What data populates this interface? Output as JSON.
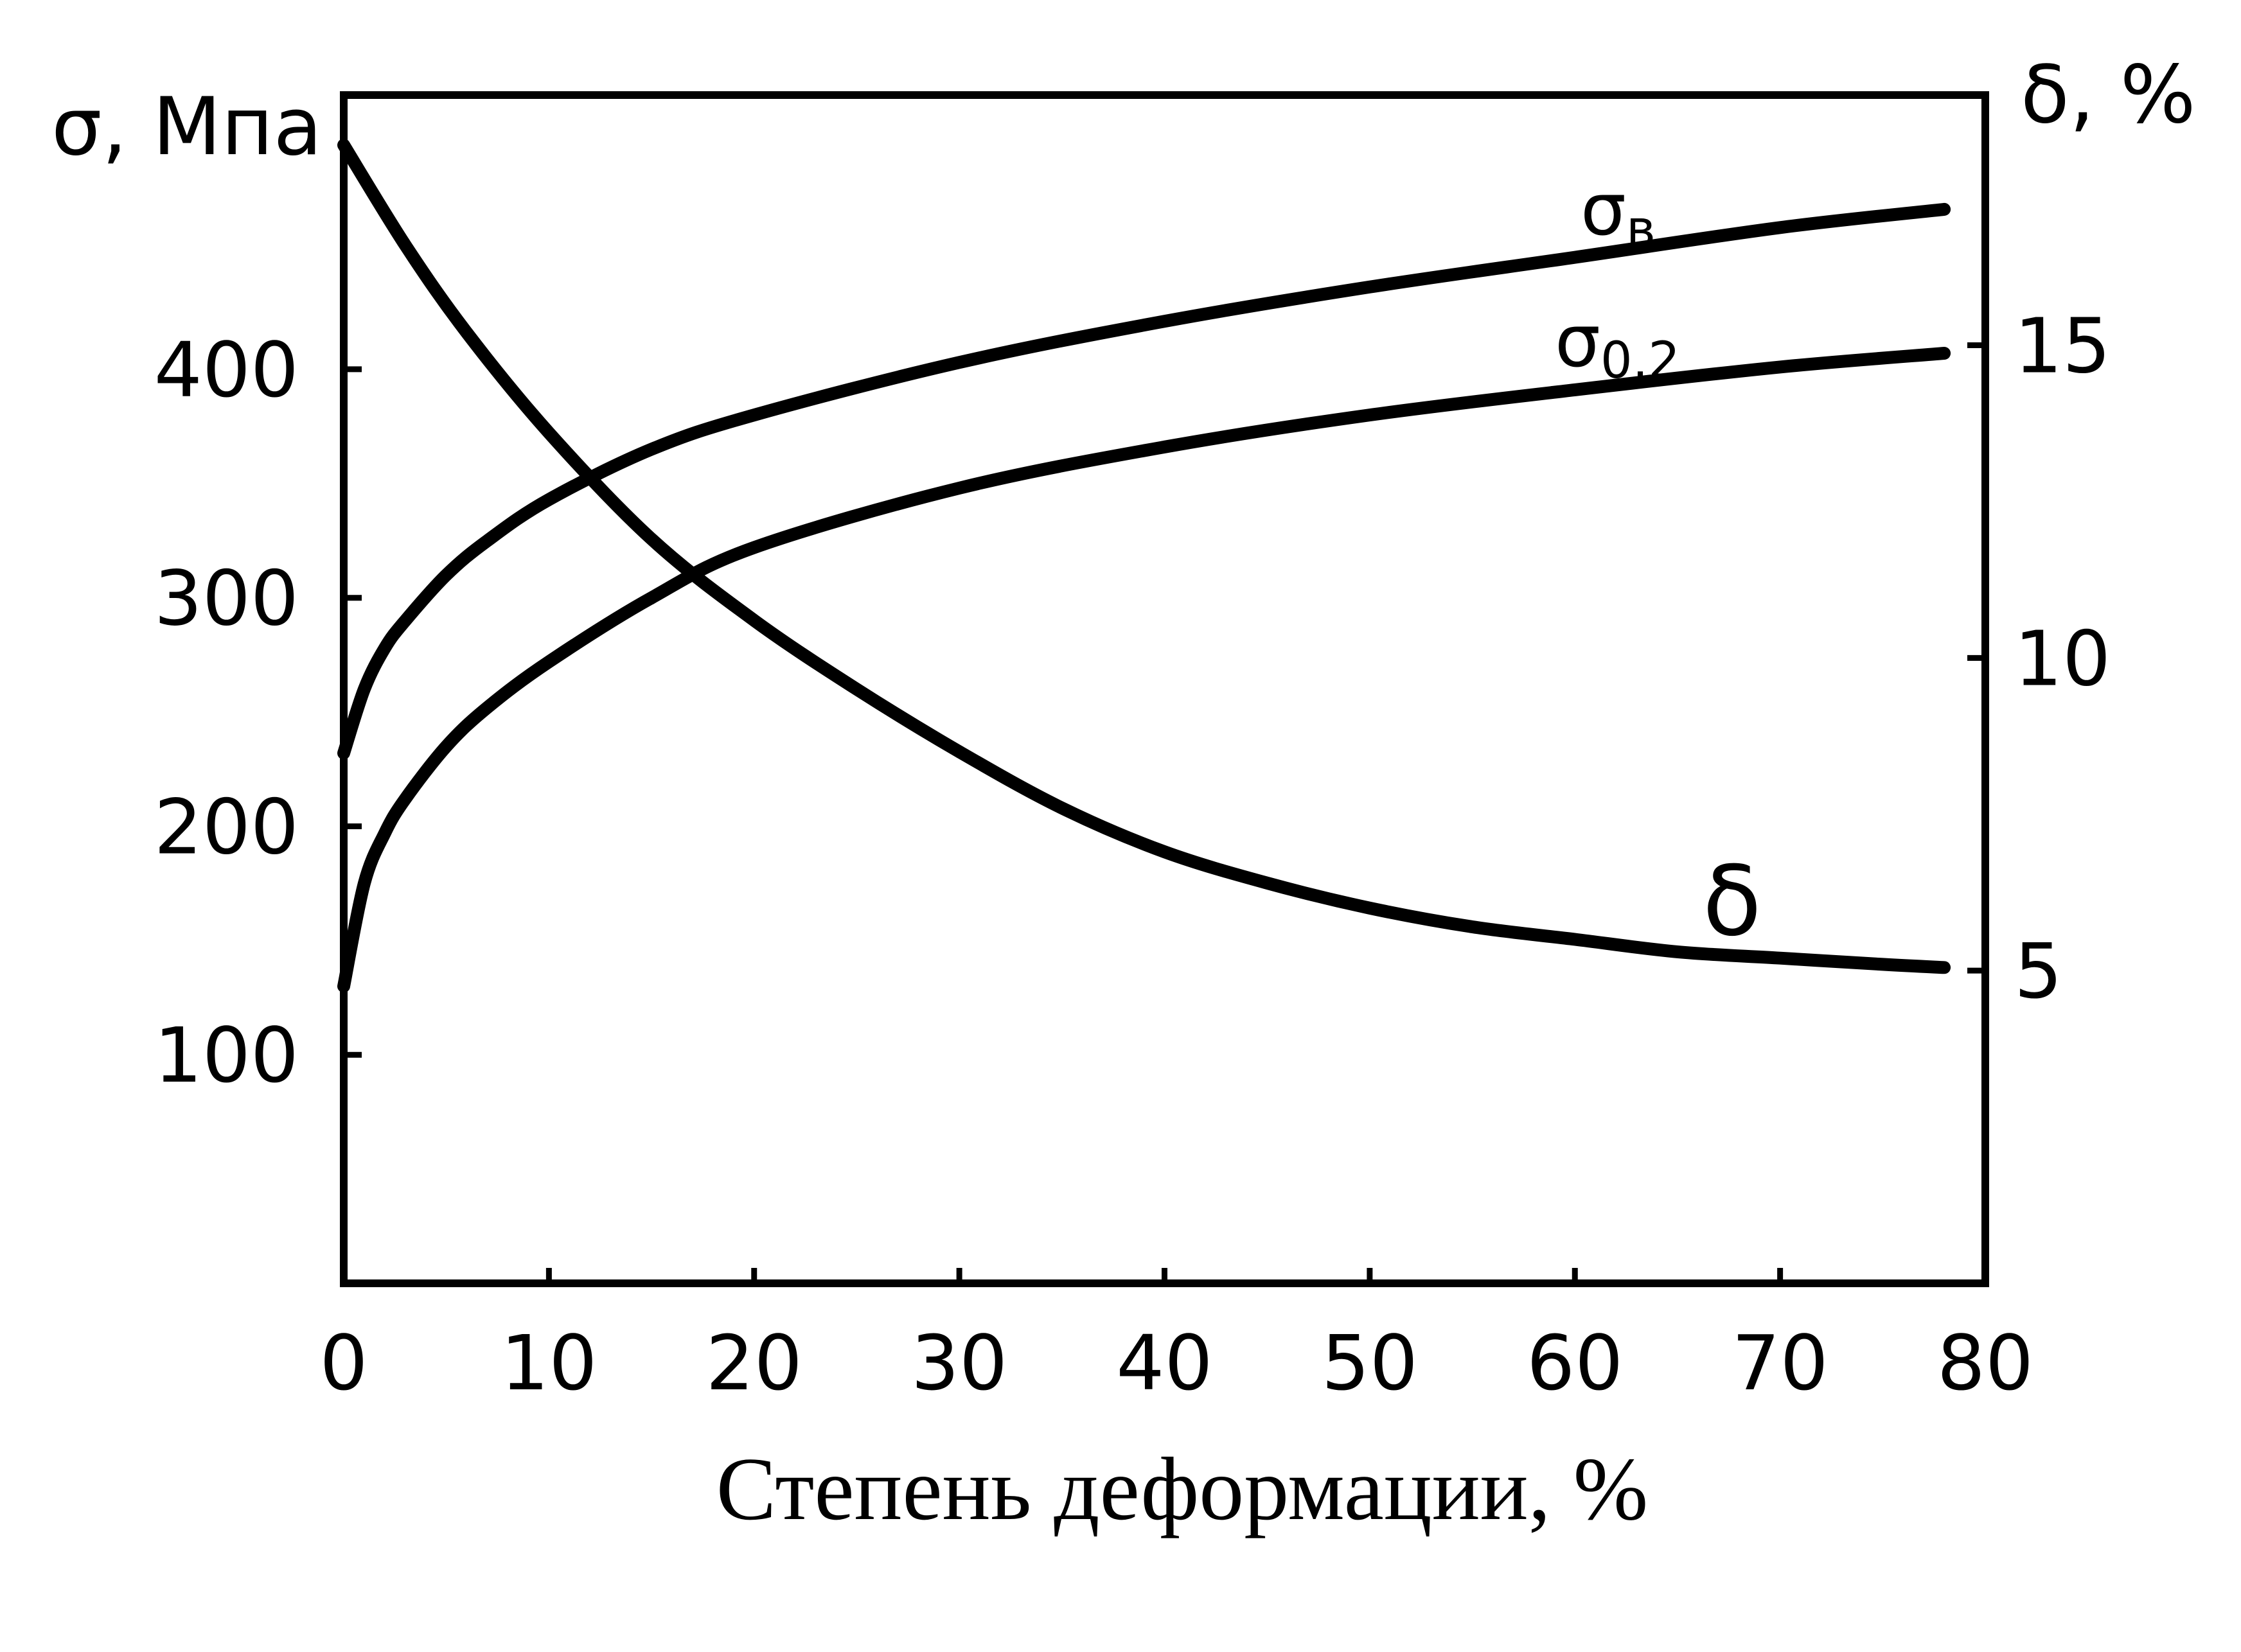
{
  "chart_data": {
    "type": "line",
    "xlabel": "Степень деформации, %",
    "ylabel_left": "σ, Мпа",
    "ylabel_right": "δ, %",
    "xlim": [
      0,
      80
    ],
    "ylim_left": [
      0,
      520
    ],
    "ylim_right": [
      0,
      19
    ],
    "x_ticks": [
      "0",
      "10",
      "20",
      "30",
      "40",
      "50",
      "60",
      "70",
      "80"
    ],
    "y_left_ticks": [
      "100",
      "200",
      "300",
      "400"
    ],
    "y_right_ticks": [
      "5",
      "10",
      "15"
    ],
    "grid": false,
    "series": [
      {
        "name": "σв",
        "label_main": "σ",
        "label_sub": "в",
        "axis": "left",
        "x": [
          0,
          1,
          2,
          3,
          5,
          7,
          10,
          15,
          20,
          30,
          40,
          50,
          60,
          70,
          78
        ],
        "y": [
          232,
          260,
          278,
          290,
          310,
          325,
          343,
          365,
          380,
          403,
          421,
          436,
          449,
          462,
          470
        ]
      },
      {
        "name": "σ0.2",
        "label_main": "σ",
        "label_sub": "0.2",
        "axis": "left",
        "x": [
          0,
          1,
          2,
          3,
          5,
          7,
          10,
          15,
          20,
          30,
          40,
          50,
          60,
          70,
          78
        ],
        "y": [
          130,
          175,
          197,
          212,
          235,
          252,
          272,
          300,
          322,
          348,
          366,
          380,
          391,
          401,
          407
        ]
      },
      {
        "name": "δ",
        "label_main": "δ",
        "axis": "right",
        "x": [
          0,
          3,
          6,
          10,
          15,
          20,
          25,
          30,
          35,
          40,
          45,
          50,
          55,
          60,
          65,
          70,
          75,
          78
        ],
        "y": [
          18.2,
          16.6,
          15.2,
          13.6,
          11.9,
          10.6,
          9.5,
          8.5,
          7.6,
          6.9,
          6.4,
          6.0,
          5.7,
          5.5,
          5.3,
          5.2,
          5.1,
          5.05
        ]
      }
    ]
  }
}
